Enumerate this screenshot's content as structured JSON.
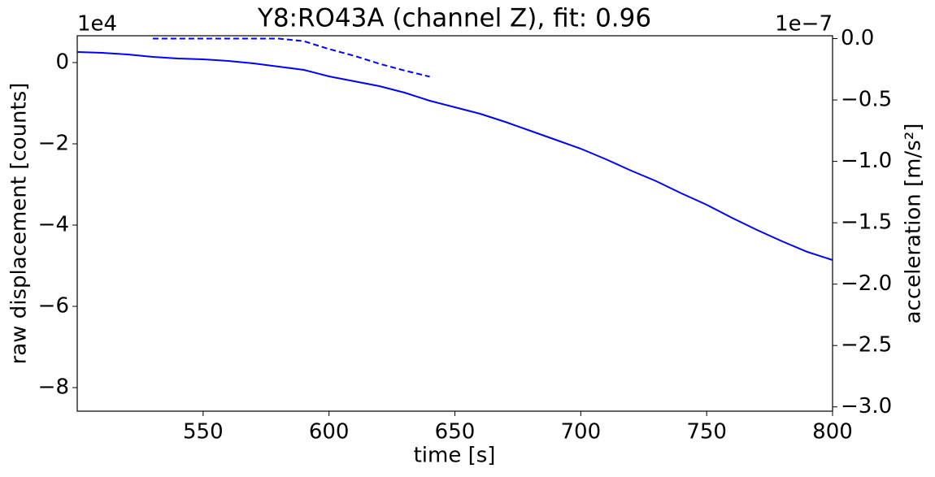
{
  "chart_data": {
    "type": "line",
    "title": "Y8:RO43A  (channel Z), fit: 0.96",
    "x_label": "time [s]",
    "y_label": "raw displacement [counts]",
    "y2_label": "acceleration [m/s²]",
    "y_offset_label": "1e4",
    "y2_offset_label": "1e−7",
    "xlim": [
      500,
      800
    ],
    "xticks": [
      550,
      600,
      650,
      700,
      750,
      800
    ],
    "ylim": [
      -85800,
      6600
    ],
    "yticks": [
      {
        "value": 0,
        "label": "0"
      },
      {
        "value": -20000,
        "label": "−2"
      },
      {
        "value": -40000,
        "label": "−4"
      },
      {
        "value": -60000,
        "label": "−6"
      },
      {
        "value": -80000,
        "label": "−8"
      }
    ],
    "y2lim": [
      -3.035e-07,
      2.33e-09
    ],
    "y2ticks": [
      {
        "value": 0,
        "label": "0.0"
      },
      {
        "value": -5e-08,
        "label": "−0.5"
      },
      {
        "value": -1e-07,
        "label": "−1.0"
      },
      {
        "value": -1.5e-07,
        "label": "−1.5"
      },
      {
        "value": -2e-07,
        "label": "−2.0"
      },
      {
        "value": -2.5e-07,
        "label": "−2.5"
      },
      {
        "value": -3e-07,
        "label": "−3.0"
      }
    ],
    "grid": false,
    "series": [
      {
        "color": "#0000ff",
        "dash": "solid",
        "axis": "y",
        "x": [
          500,
          510,
          520,
          530,
          540,
          550,
          560,
          570,
          580,
          590,
          600,
          610,
          620,
          630,
          640,
          650,
          660,
          670,
          680,
          690,
          700,
          710,
          720,
          730,
          740,
          750,
          760,
          770,
          780,
          790,
          800
        ],
        "values": [
          2600,
          2400,
          2000,
          1400,
          1000,
          800,
          400,
          -200,
          -1000,
          -1800,
          -3400,
          -4600,
          -5800,
          -7400,
          -9400,
          -11000,
          -12600,
          -14600,
          -16800,
          -19000,
          -21200,
          -23800,
          -26600,
          -29200,
          -32200,
          -35000,
          -38200,
          -41200,
          -44000,
          -46600,
          -48600
        ]
      },
      {
        "color": "#0000ff",
        "dash": "dashed",
        "axis": "y2",
        "x": [
          530,
          540,
          550,
          560,
          570,
          580,
          590,
          600,
          610,
          620,
          630,
          640
        ],
        "values": [
          0,
          0,
          0,
          0,
          0,
          0,
          -2.1e-09,
          -8.5e-09,
          -1.4e-08,
          -2.05e-08,
          -2.6e-08,
          -3.1e-08
        ]
      }
    ]
  }
}
